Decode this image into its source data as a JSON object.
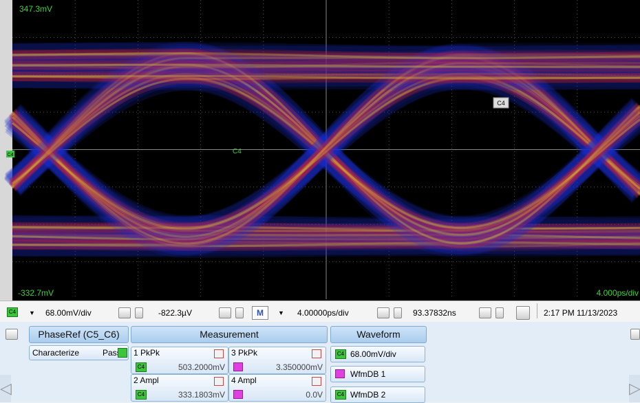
{
  "screen": {
    "top_label": "347.3mV",
    "bottom_label": "-332.7mV",
    "timebase_label": "4.000ps/div",
    "trace_label": "C4",
    "marker_label": "C4",
    "channel_marker": "C4"
  },
  "toolbar": {
    "channel": "C4",
    "vertical_scale": "68.00mV/div",
    "offset": "-822.3µV",
    "math_button": "M",
    "horizontal_scale": "4.00000ps/div",
    "position": "93.37832ns",
    "datetime": "2:17 PM 11/13/2023"
  },
  "panel": {
    "phase_ref": "PhaseRef (C5_C6)",
    "characterize": "Characterize",
    "pass": "Pass",
    "measurement_header": "Measurement",
    "waveform_header": "Waveform",
    "measurements": [
      {
        "label": "1 PkPk",
        "source": "C4",
        "value": "503.2000mV"
      },
      {
        "label": "3 PkPk",
        "value": "3.350000mV"
      },
      {
        "label": "2 Ampl",
        "source": "C4",
        "value": "333.1803mV"
      },
      {
        "label": "4 Ampl",
        "value": "0.0V"
      }
    ],
    "waveforms": [
      {
        "source": "C4",
        "label": "68.00mV/div"
      },
      {
        "label": "WfmDB 1"
      },
      {
        "source": "C4",
        "label": "WfmDB 2"
      }
    ]
  }
}
